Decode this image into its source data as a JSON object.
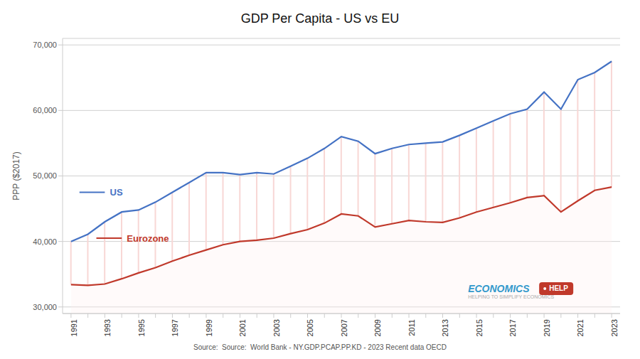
{
  "chart_data": {
    "type": "line",
    "title": "GDP Per Capita - US vs EU",
    "ylabel": "PPP ($2017)",
    "source": "Source:  Source:  World Bank - NY.GDP.PCAP.PP.KD - 2023 Recent data OECD",
    "annotations": [
      "ECONOMICS",
      "HELP",
      "HELPING TO SIMPLIFY ECONOMICS"
    ],
    "categories": [
      "1991",
      null,
      "1993",
      null,
      "1995",
      null,
      "1997",
      null,
      "1999",
      null,
      "2001",
      null,
      "2003",
      null,
      "2005",
      null,
      "2007",
      null,
      "2009",
      null,
      "2011",
      null,
      "2013",
      null,
      "2015",
      null,
      "2017",
      null,
      "2019",
      null,
      "2021",
      null,
      "2023"
    ],
    "series": [
      {
        "name": "US",
        "color": "#4472C4",
        "values": [
          40000,
          41100,
          43000,
          44500,
          44800,
          46000,
          47500,
          49000,
          50500,
          50500,
          50200,
          50500,
          50300,
          51500,
          52700,
          54200,
          56000,
          55300,
          53400,
          54200,
          54800,
          55000,
          55200,
          56200,
          57300,
          58400,
          59500,
          60200,
          62800,
          60200,
          64700,
          65800,
          67500
        ]
      },
      {
        "name": "Eurozone",
        "color": "#C0392B",
        "values": [
          33400,
          33300,
          33500,
          34300,
          35200,
          36000,
          37000,
          37900,
          38700,
          39500,
          40000,
          40200,
          40500,
          41200,
          41800,
          42800,
          44200,
          43900,
          42200,
          42700,
          43200,
          43000,
          42900,
          43600,
          44500,
          45200,
          45900,
          46700,
          47000,
          44500,
          46200,
          47800,
          48300
        ]
      }
    ],
    "ylim": [
      29000,
      71000
    ],
    "yticks": [
      {
        "value": 30000,
        "label": "30,000"
      },
      {
        "value": 40000,
        "label": "40,000"
      },
      {
        "value": 50000,
        "label": "50,000"
      },
      {
        "value": 60000,
        "label": "60,000"
      },
      {
        "value": 70000,
        "label": "70,000"
      }
    ],
    "grid": true
  }
}
